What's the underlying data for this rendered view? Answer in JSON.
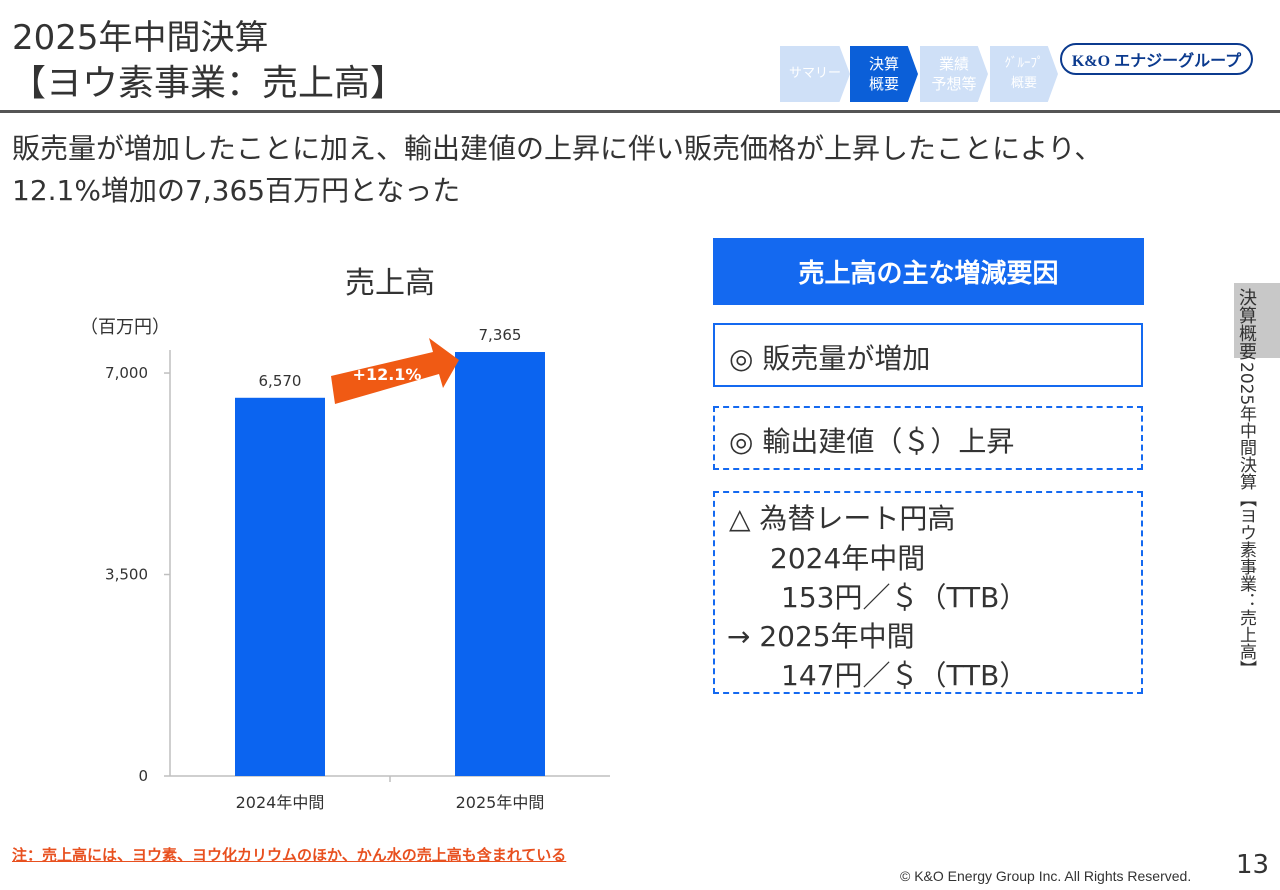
{
  "header": {
    "title_line1": "2025年中間決算",
    "title_line2": "【ヨウ素事業：売上高】"
  },
  "nav": {
    "steps": [
      {
        "label": "サマリー",
        "active": false
      },
      {
        "label": "決算\n概要",
        "active": true
      },
      {
        "label": "業績\n予想等",
        "active": false
      },
      {
        "label": "ｸﾞﾙｰﾌﾟ\n概要",
        "active": false
      }
    ]
  },
  "logo": {
    "text": "K&O エナジーグループ"
  },
  "headline": {
    "line1": "販売量が増加したことに加え、輸出建値の上昇に伴い販売価格が上昇したことにより、",
    "line2": "12.1%増加の7,365百万円となった"
  },
  "chart_data": {
    "type": "bar",
    "title": "売上高",
    "unit_label": "（百万円）",
    "categories": [
      "2024年中間",
      "2025年中間"
    ],
    "values": [
      6570,
      7365
    ],
    "value_labels": [
      "6,570",
      "7,365"
    ],
    "ylim": [
      0,
      7400
    ],
    "yticks": [
      0,
      3500,
      7000
    ],
    "ytick_labels": [
      "0",
      "3,500",
      "7,000"
    ],
    "bar_color": "#0b64f0",
    "growth_label": "+12.1%",
    "growth_color": "#f05a14",
    "grid": false,
    "legend": "none"
  },
  "factors": {
    "header": "売上高の主な増減要因",
    "item1": "◎ 販売量が増加",
    "item2": "◎ 輸出建値（＄）上昇",
    "item3_lines": [
      "△ 為替レート円高",
      "2024年中間",
      "153円／＄（TTB）",
      "→ 2025年中間",
      "147円／＄（TTB）"
    ]
  },
  "side": {
    "tab": "決算概要",
    "vertical": "2025年中間決算【ヨウ素事業：売上高】"
  },
  "footnote": "注：売上高には、ヨウ素、ヨウ化カリウムのほか、かん水の売上高も含まれている",
  "copyright": "© K&O Energy Group Inc. All Rights Reserved.",
  "page_number": "13"
}
